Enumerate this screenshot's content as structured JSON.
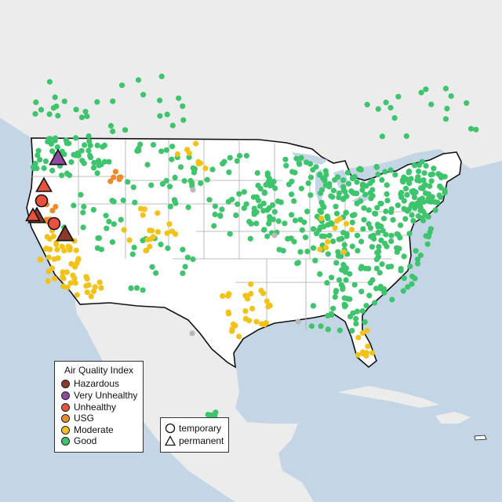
{
  "map": {
    "colors": {
      "water": "#c4d6e6",
      "land": "#ececec",
      "usa": "#ffffff",
      "border": "#111111",
      "state_line": "#aaaaaa",
      "hazardous": "#8b3a2b",
      "very_unhealthy": "#8e4a9e",
      "unhealthy": "#e7513e",
      "usg": "#ef8a2a",
      "moderate": "#f2c21b",
      "good": "#3ec46d",
      "missing": "#b9b9b9"
    }
  },
  "legend": {
    "title": "Air Quality Index",
    "items": [
      {
        "label": "Hazardous",
        "color": "#8b3a2b"
      },
      {
        "label": "Very Unhealthy",
        "color": "#8e4a9e"
      },
      {
        "label": "Unhealthy",
        "color": "#e7513e"
      },
      {
        "label": "USG",
        "color": "#ef8a2a"
      },
      {
        "label": "Moderate",
        "color": "#f2c21b"
      },
      {
        "label": "Good",
        "color": "#3ec46d"
      }
    ]
  },
  "site_legend": {
    "items": [
      {
        "label": "temporary",
        "shape": "circle"
      },
      {
        "label": "permanent",
        "shape": "triangle"
      }
    ]
  }
}
